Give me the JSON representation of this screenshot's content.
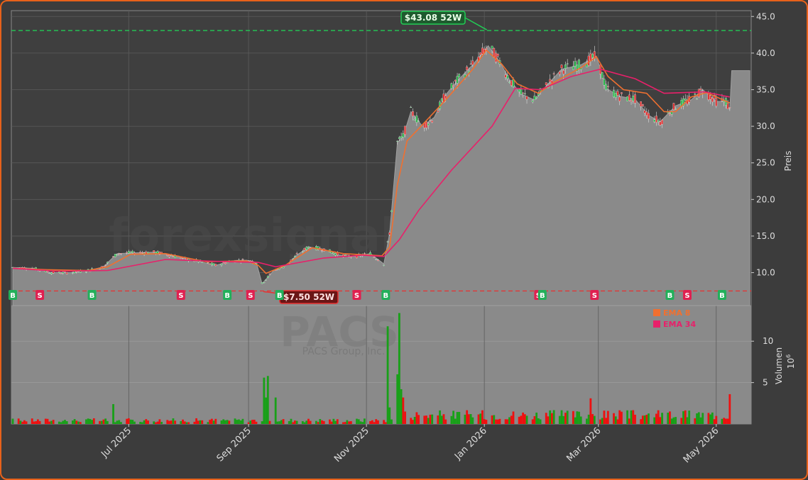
{
  "chart_data": {
    "type": "line",
    "subtype": "candlestick-with-volume",
    "watermark": "forexsignals.trade",
    "symbol_watermark": "PACS",
    "company_watermark": "PACS Group, Inc.",
    "price_axis_label": "Preis",
    "volume_axis_label": "Volumen",
    "volume_unit": "10^6",
    "volume_unit_base": "10",
    "volume_unit_exp": "6",
    "price_ticks": [
      "10.0",
      "15.0",
      "20.0",
      "25.0",
      "30.0",
      "35.0",
      "40.0",
      "45.0"
    ],
    "volume_ticks": [
      "5",
      "10"
    ],
    "x_ticks": [
      "Jul 2025",
      "Sep 2025",
      "Nov 2025",
      "Jan 2026",
      "Mar 2026",
      "May 2026"
    ],
    "x_tick_dates": [
      "2025-07-01",
      "2025-09-01",
      "2025-11-01",
      "2026-01-01",
      "2026-03-01",
      "2026-05-01"
    ],
    "date_range": [
      "2025-05-02",
      "2026-05-11"
    ],
    "price_ylim": [
      5.5,
      45.8
    ],
    "volume_ylim": [
      0,
      14.3
    ],
    "grid": true,
    "legend": [
      {
        "label": "EMA 8",
        "color": "#f07030"
      },
      {
        "label": "EMA 34",
        "color": "#e8206a"
      }
    ],
    "high_marker": {
      "label": "$43.08 52W",
      "value": 43.08,
      "date": "2026-01-03",
      "color": "#22cc55"
    },
    "low_marker": {
      "label": "$7.50 52W",
      "value": 7.5,
      "date": "2025-09-08",
      "color": "#e83030"
    },
    "signals": [
      {
        "date": "2025-05-02",
        "type": "B"
      },
      {
        "date": "2025-05-16",
        "type": "S"
      },
      {
        "date": "2025-06-12",
        "type": "B"
      },
      {
        "date": "2025-07-28",
        "type": "S"
      },
      {
        "date": "2025-08-21",
        "type": "B"
      },
      {
        "date": "2025-09-02",
        "type": "S"
      },
      {
        "date": "2025-09-17",
        "type": "B"
      },
      {
        "date": "2025-10-27",
        "type": "S"
      },
      {
        "date": "2025-11-11",
        "type": "B"
      },
      {
        "date": "2026-01-29",
        "type": "S"
      },
      {
        "date": "2026-01-31",
        "type": "B"
      },
      {
        "date": "2026-02-27",
        "type": "S"
      },
      {
        "date": "2026-04-07",
        "type": "B"
      },
      {
        "date": "2026-04-16",
        "type": "S"
      },
      {
        "date": "2026-05-04",
        "type": "B"
      }
    ],
    "price_path": [
      [
        "2025-05-02",
        10.7
      ],
      [
        "2025-05-12",
        10.6
      ],
      [
        "2025-05-22",
        10.0
      ],
      [
        "2025-06-01",
        10.0
      ],
      [
        "2025-06-10",
        10.3
      ],
      [
        "2025-06-18",
        10.8
      ],
      [
        "2025-06-21",
        11.6
      ],
      [
        "2025-06-25",
        12.6
      ],
      [
        "2025-07-03",
        12.7
      ],
      [
        "2025-07-14",
        12.8
      ],
      [
        "2025-07-22",
        12.4
      ],
      [
        "2025-07-30",
        11.9
      ],
      [
        "2025-08-07",
        11.5
      ],
      [
        "2025-08-15",
        11.0
      ],
      [
        "2025-08-23",
        11.6
      ],
      [
        "2025-08-31",
        11.7
      ],
      [
        "2025-09-05",
        11.4
      ],
      [
        "2025-09-08",
        8.5
      ],
      [
        "2025-09-14",
        10.3
      ],
      [
        "2025-09-20",
        10.9
      ],
      [
        "2025-09-26",
        12.4
      ],
      [
        "2025-10-02",
        13.5
      ],
      [
        "2025-10-10",
        13.2
      ],
      [
        "2025-10-18",
        12.4
      ],
      [
        "2025-10-26",
        12.2
      ],
      [
        "2025-11-03",
        12.6
      ],
      [
        "2025-11-10",
        11.2
      ],
      [
        "2025-11-13",
        15.4
      ],
      [
        "2025-11-17",
        27.8
      ],
      [
        "2025-11-20",
        28.6
      ],
      [
        "2025-11-24",
        32.0
      ],
      [
        "2025-11-30",
        30.0
      ],
      [
        "2025-12-06",
        31.2
      ],
      [
        "2025-12-12",
        34.3
      ],
      [
        "2025-12-18",
        36.2
      ],
      [
        "2025-12-26",
        38.4
      ],
      [
        "2026-01-03",
        41.0
      ],
      [
        "2026-01-09",
        38.8
      ],
      [
        "2026-01-14",
        36.4
      ],
      [
        "2026-01-20",
        34.4
      ],
      [
        "2026-01-27",
        33.6
      ],
      [
        "2026-02-02",
        35.5
      ],
      [
        "2026-02-10",
        37.8
      ],
      [
        "2026-02-20",
        38.4
      ],
      [
        "2026-02-28",
        39.6
      ],
      [
        "2026-03-05",
        35.2
      ],
      [
        "2026-03-12",
        34.1
      ],
      [
        "2026-03-20",
        33.7
      ],
      [
        "2026-03-27",
        31.5
      ],
      [
        "2026-04-02",
        30.6
      ],
      [
        "2026-04-10",
        32.8
      ],
      [
        "2026-04-18",
        33.6
      ],
      [
        "2026-04-24",
        35.0
      ],
      [
        "2026-05-01",
        33.4
      ],
      [
        "2026-05-06",
        33.4
      ],
      [
        "2026-05-08",
        32.2
      ],
      [
        "2026-05-09",
        37.6
      ],
      [
        "2026-05-11",
        37.6
      ]
    ],
    "ema8": [
      [
        "2025-05-02",
        10.6
      ],
      [
        "2025-05-20",
        10.4
      ],
      [
        "2025-06-10",
        10.3
      ],
      [
        "2025-06-20",
        10.8
      ],
      [
        "2025-07-02",
        12.5
      ],
      [
        "2025-07-20",
        12.6
      ],
      [
        "2025-08-10",
        11.5
      ],
      [
        "2025-08-31",
        11.6
      ],
      [
        "2025-09-06",
        11.0
      ],
      [
        "2025-09-10",
        9.9
      ],
      [
        "2025-09-20",
        11.0
      ],
      [
        "2025-10-04",
        13.4
      ],
      [
        "2025-10-20",
        12.6
      ],
      [
        "2025-11-09",
        12.3
      ],
      [
        "2025-11-13",
        13.5
      ],
      [
        "2025-11-17",
        22.0
      ],
      [
        "2025-11-22",
        28.0
      ],
      [
        "2025-12-01",
        30.5
      ],
      [
        "2025-12-12",
        33.6
      ],
      [
        "2025-12-26",
        37.8
      ],
      [
        "2026-01-02",
        40.4
      ],
      [
        "2026-01-10",
        38.5
      ],
      [
        "2026-01-18",
        35.8
      ],
      [
        "2026-01-29",
        34.5
      ],
      [
        "2026-02-06",
        36.0
      ],
      [
        "2026-02-20",
        38.0
      ],
      [
        "2026-02-28",
        39.5
      ],
      [
        "2026-03-06",
        36.8
      ],
      [
        "2026-03-14",
        35.0
      ],
      [
        "2026-03-26",
        34.5
      ],
      [
        "2026-04-04",
        32.0
      ],
      [
        "2026-04-10",
        32.0
      ],
      [
        "2026-04-18",
        34.0
      ],
      [
        "2026-04-26",
        34.6
      ],
      [
        "2026-05-08",
        33.2
      ]
    ],
    "ema34": [
      [
        "2025-05-02",
        10.6
      ],
      [
        "2025-05-25",
        10.2
      ],
      [
        "2025-06-20",
        10.3
      ],
      [
        "2025-07-20",
        11.8
      ],
      [
        "2025-08-20",
        11.5
      ],
      [
        "2025-09-06",
        11.4
      ],
      [
        "2025-09-15",
        10.8
      ],
      [
        "2025-10-10",
        12.0
      ],
      [
        "2025-10-30",
        12.4
      ],
      [
        "2025-11-10",
        12.2
      ],
      [
        "2025-11-18",
        14.5
      ],
      [
        "2025-11-28",
        18.5
      ],
      [
        "2025-12-15",
        24.0
      ],
      [
        "2026-01-05",
        30.0
      ],
      [
        "2026-01-17",
        35.2
      ],
      [
        "2026-01-30",
        35.0
      ],
      [
        "2026-02-15",
        36.8
      ],
      [
        "2026-03-02",
        37.8
      ],
      [
        "2026-03-20",
        36.5
      ],
      [
        "2026-04-04",
        34.5
      ],
      [
        "2026-04-25",
        34.7
      ],
      [
        "2026-05-08",
        34.0
      ]
    ],
    "volume_pattern_note": ""
  }
}
